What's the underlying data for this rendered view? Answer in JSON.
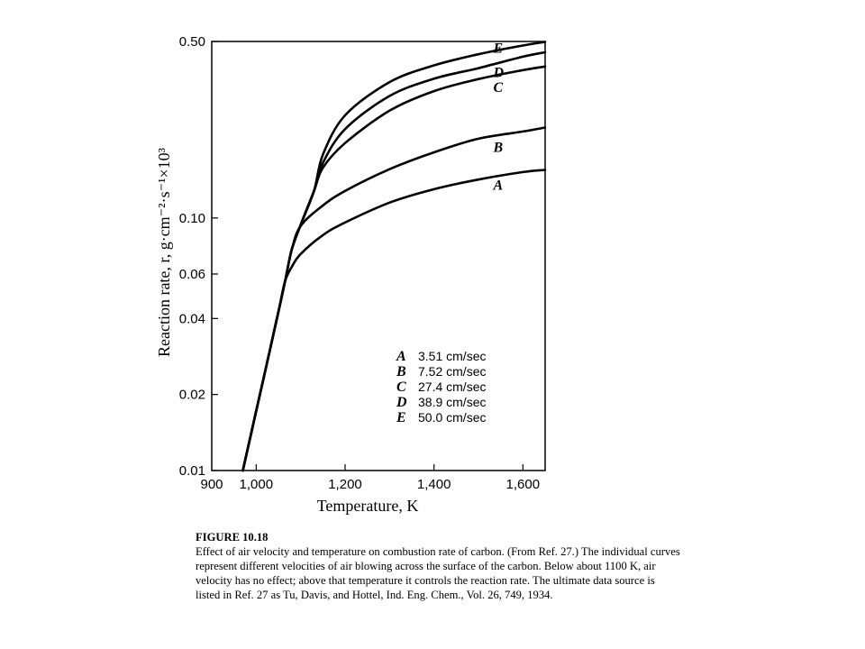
{
  "chart_data": {
    "type": "line",
    "title": "",
    "xlabel": "Temperature, K",
    "ylabel": "Reaction rate, r, g·cm⁻²·s⁻¹×10³",
    "x_scale": "linear",
    "y_scale": "log",
    "xlim": [
      900,
      1650
    ],
    "ylim": [
      0.01,
      0.5
    ],
    "x_ticks": [
      900,
      1000,
      1200,
      1400,
      1600
    ],
    "x_tick_labels": [
      "900",
      "1,000",
      "1,200",
      "1,400",
      "1,600"
    ],
    "y_ticks": [
      0.01,
      0.02,
      0.04,
      0.06,
      0.1,
      0.5
    ],
    "y_tick_labels": [
      "0.01",
      "0.02",
      "0.04",
      "0.06",
      "0.10",
      "0.50"
    ],
    "grid": false,
    "legend_position": "lower-right",
    "series": [
      {
        "name": "A",
        "label": "3.51 cm/sec",
        "x": [
          970,
          1000,
          1030,
          1050,
          1065,
          1080,
          1100,
          1150,
          1200,
          1300,
          1400,
          1500,
          1600,
          1650
        ],
        "y": [
          0.01,
          0.0172,
          0.0295,
          0.0425,
          0.0562,
          0.064,
          0.072,
          0.0855,
          0.096,
          0.115,
          0.13,
          0.142,
          0.152,
          0.155
        ]
      },
      {
        "name": "B",
        "label": "7.52 cm/sec",
        "x": [
          970,
          1000,
          1030,
          1050,
          1065,
          1080,
          1100,
          1150,
          1200,
          1300,
          1400,
          1500,
          1600,
          1650
        ],
        "y": [
          0.01,
          0.0172,
          0.0295,
          0.0425,
          0.0562,
          0.075,
          0.093,
          0.112,
          0.128,
          0.156,
          0.182,
          0.206,
          0.22,
          0.228
        ]
      },
      {
        "name": "C",
        "label": "27.4 cm/sec",
        "x": [
          970,
          1000,
          1030,
          1050,
          1065,
          1080,
          1100,
          1130,
          1150,
          1200,
          1300,
          1400,
          1500,
          1600,
          1650
        ],
        "y": [
          0.01,
          0.0172,
          0.0295,
          0.0425,
          0.0562,
          0.075,
          0.094,
          0.128,
          0.158,
          0.198,
          0.266,
          0.318,
          0.355,
          0.385,
          0.398
        ]
      },
      {
        "name": "D",
        "label": "38.9 cm/sec",
        "x": [
          970,
          1000,
          1030,
          1050,
          1065,
          1080,
          1100,
          1130,
          1150,
          1200,
          1300,
          1400,
          1500,
          1600,
          1650
        ],
        "y": [
          0.01,
          0.0172,
          0.0295,
          0.0425,
          0.0562,
          0.075,
          0.094,
          0.128,
          0.165,
          0.225,
          0.304,
          0.356,
          0.392,
          0.435,
          0.453
        ]
      },
      {
        "name": "E",
        "label": "50.0 cm/sec",
        "x": [
          970,
          1000,
          1030,
          1050,
          1065,
          1080,
          1100,
          1130,
          1150,
          1200,
          1300,
          1400,
          1500,
          1600,
          1650
        ],
        "y": [
          0.01,
          0.0172,
          0.0295,
          0.0425,
          0.0562,
          0.075,
          0.094,
          0.128,
          0.178,
          0.255,
          0.345,
          0.402,
          0.445,
          0.482,
          0.498
        ]
      }
    ]
  },
  "caption": {
    "title": "FIGURE 10.18",
    "text": "Effect of air velocity and temperature on combustion rate of carbon. (From Ref. 27.) The individual curves represent different velocities of air blowing across the surface of the carbon. Below about 1100 K, air velocity has no effect; above that temperature it controls the reaction rate. The ultimate data source is listed in Ref. 27 as Tu, Davis, and Hottel, Ind. Eng. Chem., Vol. 26, 749, 1934."
  }
}
